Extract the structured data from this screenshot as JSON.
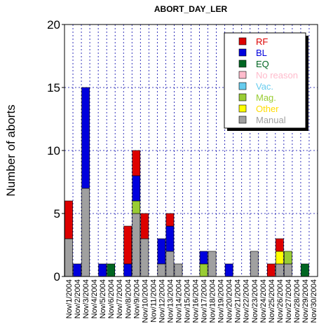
{
  "chart_data": {
    "type": "bar",
    "stacked": true,
    "title": "ABORT_DAY_LER",
    "xlabel": "",
    "ylabel": "Number of aborts",
    "ylim": [
      0,
      20
    ],
    "yticks": [
      "0",
      "5",
      "10",
      "15",
      "20"
    ],
    "grid": true,
    "legend_position": "top-right",
    "categories": [
      "Nov/1/2004",
      "Nov/2/2004",
      "Nov/3/2004",
      "Nov/4/2004",
      "Nov/5/2004",
      "Nov/6/2004",
      "Nov/7/2004",
      "Nov/8/2004",
      "Nov/9/2004",
      "Nov/10/2004",
      "Nov/11/2004",
      "Nov/12/2004",
      "Nov/13/2004",
      "Nov/14/2004",
      "Nov/15/2004",
      "Nov/16/2004",
      "Nov/17/2004",
      "Nov/18/2004",
      "Nov/19/2004",
      "Nov/20/2004",
      "Nov/21/2004",
      "Nov/22/2004",
      "Nov/23/2004",
      "Nov/24/2004",
      "Nov/25/2004",
      "Nov/26/2004",
      "Nov/27/2004",
      "Nov/28/2004",
      "Nov/29/2004",
      "Nov/30/2004"
    ],
    "series": [
      {
        "name": "Manual",
        "color": "#a0a0a0",
        "values": [
          3,
          0,
          7,
          0,
          0,
          0,
          0,
          0,
          5,
          3,
          0,
          1,
          2,
          1,
          0,
          0,
          0,
          2,
          0,
          0,
          0,
          0,
          2,
          0,
          0,
          1,
          1,
          0,
          0,
          0
        ]
      },
      {
        "name": "Other",
        "color": "#ffff00",
        "values": [
          0,
          0,
          0,
          0,
          0,
          0,
          0,
          0,
          0,
          0,
          0,
          0,
          0,
          0,
          0,
          0,
          0,
          0,
          0,
          0,
          0,
          0,
          0,
          0,
          0,
          1,
          0,
          0,
          0,
          0
        ]
      },
      {
        "name": "Mag.",
        "color": "#99cc33",
        "values": [
          0,
          0,
          0,
          0,
          0,
          0,
          0,
          0,
          1,
          0,
          0,
          0,
          0,
          0,
          0,
          0,
          1,
          0,
          0,
          0,
          0,
          0,
          0,
          0,
          0,
          0,
          1,
          0,
          0,
          0
        ]
      },
      {
        "name": "Vac.",
        "color": "#66ccee",
        "values": [
          0,
          0,
          0,
          0,
          0,
          0,
          0,
          0,
          0,
          0,
          0,
          0,
          0,
          0,
          0,
          0,
          0,
          0,
          0,
          0,
          0,
          0,
          0,
          0,
          0,
          0,
          0,
          0,
          0,
          0
        ]
      },
      {
        "name": "No reason",
        "color": "#ffbbcc",
        "values": [
          0,
          0,
          0,
          0,
          0,
          0,
          0,
          0,
          0,
          0,
          0,
          0,
          0,
          0,
          0,
          0,
          0,
          0,
          0,
          0,
          0,
          0,
          0,
          0,
          0,
          0,
          0,
          0,
          0,
          0
        ]
      },
      {
        "name": "EQ",
        "color": "#006622",
        "values": [
          0,
          0,
          0,
          0,
          0,
          1,
          0,
          0,
          0,
          0,
          0,
          0,
          0,
          0,
          0,
          0,
          0,
          0,
          0,
          0,
          0,
          0,
          0,
          0,
          0,
          0,
          0,
          0,
          1,
          0
        ]
      },
      {
        "name": "BL",
        "color": "#0000dd",
        "values": [
          0,
          1,
          8,
          0,
          1,
          0,
          0,
          1,
          2,
          0,
          0,
          2,
          2,
          0,
          0,
          0,
          1,
          0,
          0,
          1,
          0,
          0,
          0,
          0,
          0,
          0,
          0,
          0,
          0,
          0
        ]
      },
      {
        "name": "RF",
        "color": "#dd0000",
        "values": [
          3,
          0,
          0,
          0,
          0,
          0,
          0,
          3,
          2,
          2,
          0,
          0,
          1,
          0,
          0,
          0,
          0,
          0,
          0,
          0,
          0,
          0,
          0,
          0,
          1,
          1,
          0,
          0,
          0,
          0
        ]
      }
    ],
    "legend": [
      {
        "name": "RF",
        "color": "#dd0000",
        "text_color": "#dd0000"
      },
      {
        "name": "BL",
        "color": "#0000dd",
        "text_color": "#0000dd"
      },
      {
        "name": "EQ",
        "color": "#006622",
        "text_color": "#006622"
      },
      {
        "name": "No reason",
        "color": "#ffbbcc",
        "text_color": "#ffbbcc"
      },
      {
        "name": "Vac.",
        "color": "#66ccee",
        "text_color": "#66ccee"
      },
      {
        "name": "Mag.",
        "color": "#99cc33",
        "text_color": "#99cc33"
      },
      {
        "name": "Other",
        "color": "#ffff00",
        "text_color": "#ffdd00"
      },
      {
        "name": "Manual",
        "color": "#a0a0a0",
        "text_color": "#a0a0a0"
      }
    ]
  }
}
